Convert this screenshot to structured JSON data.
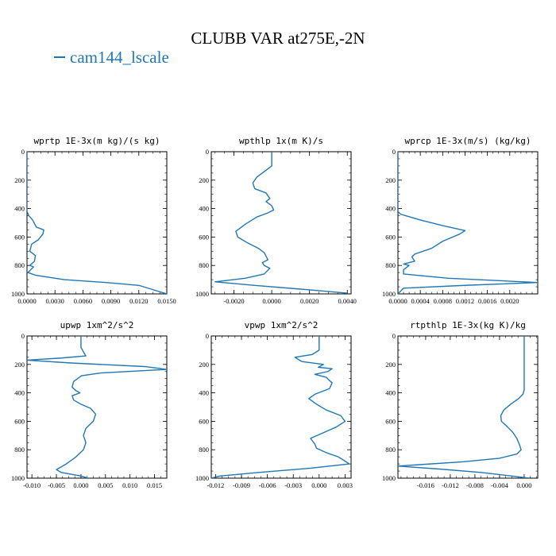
{
  "title": "CLUBB VAR at275E,-2N",
  "legend": {
    "label": "cam144_lscale",
    "color": "#1f77b4"
  },
  "chart_data": [
    {
      "type": "line",
      "title": "wprtp  1E-3x(m kg)/(s kg)",
      "xlim": [
        0,
        0.015
      ],
      "ylim": [
        1000,
        0
      ],
      "xticks": [
        0,
        0.003,
        0.006,
        0.009,
        0.012,
        0.015
      ],
      "xtick_labels": [
        "0.0000",
        "0.0030",
        "0.0060",
        "0.0090",
        "0.0120",
        "0.0150"
      ],
      "yticks": [
        0,
        200,
        400,
        600,
        800,
        1000
      ],
      "ytick_labels": [
        "0",
        "200",
        "400",
        "600",
        "800",
        "1000"
      ],
      "series": [
        {
          "points": [
            [
              0,
              0
            ],
            [
              0,
              300
            ],
            [
              0,
              420
            ],
            [
              0.0002,
              450
            ],
            [
              0.0006,
              480
            ],
            [
              0.001,
              530
            ],
            [
              0.0018,
              550
            ],
            [
              0.0017,
              580
            ],
            [
              0.0012,
              620
            ],
            [
              0.0005,
              650
            ],
            [
              0.0003,
              700
            ],
            [
              0.0009,
              730
            ],
            [
              0.0008,
              770
            ],
            [
              0.0003,
              800
            ],
            [
              0.0007,
              810
            ],
            [
              0.0004,
              830
            ],
            [
              0.0001,
              850
            ],
            [
              0.001,
              870
            ],
            [
              0.004,
              900
            ],
            [
              0.0085,
              920
            ],
            [
              0.012,
              940
            ],
            [
              0.0135,
              970
            ],
            [
              0.015,
              1000
            ]
          ]
        }
      ]
    },
    {
      "type": "line",
      "title": "wpthlp  1x(m K)/s",
      "xlim": [
        -0.0032,
        0.0042
      ],
      "ylim": [
        1000,
        0
      ],
      "xticks": [
        -0.002,
        0,
        0.002,
        0.004
      ],
      "xtick_labels": [
        "-0.0020",
        "0.0000",
        "0.0020",
        "0.0040"
      ],
      "yticks": [
        0,
        200,
        400,
        600,
        800,
        1000
      ],
      "ytick_labels": [
        "0",
        "200",
        "400",
        "600",
        "800",
        "1000"
      ],
      "series": [
        {
          "points": [
            [
              0,
              0
            ],
            [
              0,
              100
            ],
            [
              -0.0003,
              130
            ],
            [
              -0.0008,
              180
            ],
            [
              -0.001,
              220
            ],
            [
              -0.0009,
              260
            ],
            [
              -0.0003,
              290
            ],
            [
              -0.0001,
              330
            ],
            [
              -0.0003,
              350
            ],
            [
              0,
              380
            ],
            [
              0.0001,
              410
            ],
            [
              -0.0002,
              430
            ],
            [
              -0.0008,
              460
            ],
            [
              -0.0014,
              510
            ],
            [
              -0.0019,
              560
            ],
            [
              -0.0018,
              600
            ],
            [
              -0.0013,
              640
            ],
            [
              -0.0007,
              680
            ],
            [
              -0.0004,
              710
            ],
            [
              -0.0002,
              760
            ],
            [
              -0.0005,
              780
            ],
            [
              -0.0004,
              800
            ],
            [
              -0.0001,
              820
            ],
            [
              -0.0004,
              860
            ],
            [
              -0.0014,
              890
            ],
            [
              -0.003,
              915
            ],
            [
              -0.0009,
              940
            ],
            [
              0.0014,
              965
            ],
            [
              0.004,
              995
            ]
          ]
        }
      ]
    },
    {
      "type": "line",
      "title": "wprcp  1E-3x(m/s) (kg/kg)",
      "xlim": [
        0,
        0.0025
      ],
      "ylim": [
        1000,
        0
      ],
      "xticks": [
        0,
        0.0004,
        0.0008,
        0.0012,
        0.0016,
        0.002
      ],
      "xtick_labels": [
        "0.0000",
        "0.0004",
        "0.0008",
        "0.0012",
        "0.0016",
        "0.0020"
      ],
      "yticks": [
        0,
        200,
        400,
        600,
        800,
        1000
      ],
      "ytick_labels": [
        "0",
        "200",
        "400",
        "600",
        "800",
        "1000"
      ],
      "series": [
        {
          "points": [
            [
              0,
              0
            ],
            [
              0,
              420
            ],
            [
              5e-05,
              440
            ],
            [
              0.0004,
              480
            ],
            [
              0.0008,
              520
            ],
            [
              0.0012,
              555
            ],
            [
              0.0011,
              580
            ],
            [
              0.0008,
              630
            ],
            [
              0.0006,
              680
            ],
            [
              0.0003,
              720
            ],
            [
              0.00025,
              740
            ],
            [
              0.0003,
              770
            ],
            [
              0.0001,
              790
            ],
            [
              0.0002,
              800
            ],
            [
              0.0001,
              830
            ],
            [
              0.0001,
              860
            ],
            [
              0.0009,
              890
            ],
            [
              0.0025,
              920
            ],
            [
              0.0012,
              940
            ],
            [
              0.0001,
              960
            ],
            [
              0,
              1000
            ]
          ]
        }
      ]
    },
    {
      "type": "line",
      "title": "upwp  1xm^2/s^2",
      "xlim": [
        -0.011,
        0.0175
      ],
      "ylim": [
        1000,
        0
      ],
      "xticks": [
        -0.01,
        -0.005,
        0,
        0.005,
        0.01,
        0.015
      ],
      "xtick_labels": [
        "-0.010",
        "-0.005",
        "0.000",
        "0.005",
        "0.010",
        "0.015"
      ],
      "yticks": [
        0,
        200,
        400,
        600,
        800,
        1000
      ],
      "ytick_labels": [
        "0",
        "200",
        "400",
        "600",
        "800",
        "1000"
      ],
      "series": [
        {
          "points": [
            [
              0,
              0
            ],
            [
              0,
              80
            ],
            [
              0.0008,
              130
            ],
            [
              0.001,
              140
            ],
            [
              -0.004,
              155
            ],
            [
              -0.011,
              170
            ],
            [
              -0.002,
              190
            ],
            [
              0.013,
              215
            ],
            [
              0.0175,
              235
            ],
            [
              0.004,
              260
            ],
            [
              0.0001,
              280
            ],
            [
              -0.0015,
              320
            ],
            [
              -0.0018,
              360
            ],
            [
              -0.001,
              385
            ],
            [
              -0.0002,
              400
            ],
            [
              -0.0018,
              420
            ],
            [
              -0.0015,
              450
            ],
            [
              0,
              480
            ],
            [
              0.002,
              510
            ],
            [
              0.003,
              550
            ],
            [
              0.0025,
              600
            ],
            [
              0.001,
              650
            ],
            [
              0.0005,
              700
            ],
            [
              0.001,
              750
            ],
            [
              0.0005,
              800
            ],
            [
              -0.001,
              850
            ],
            [
              -0.003,
              900
            ],
            [
              -0.005,
              940
            ],
            [
              -0.004,
              960
            ],
            [
              0,
              985
            ],
            [
              0.0015,
              1000
            ]
          ]
        }
      ]
    },
    {
      "type": "line",
      "title": "vpwp  1xm^2/s^2",
      "xlim": [
        -0.0125,
        0.0037
      ],
      "ylim": [
        1000,
        0
      ],
      "xticks": [
        -0.012,
        -0.009,
        -0.006,
        -0.003,
        0,
        0.003
      ],
      "xtick_labels": [
        "-0.012",
        "-0.009",
        "-0.006",
        "-0.003",
        "0.000",
        "0.003"
      ],
      "yticks": [
        0,
        200,
        400,
        600,
        800,
        1000
      ],
      "ytick_labels": [
        "0",
        "200",
        "400",
        "600",
        "800",
        "1000"
      ],
      "series": [
        {
          "points": [
            [
              0,
              0
            ],
            [
              0,
              100
            ],
            [
              -0.0008,
              130
            ],
            [
              -0.0028,
              150
            ],
            [
              -0.002,
              180
            ],
            [
              0.0005,
              200
            ],
            [
              -0.0001,
              220
            ],
            [
              0.0015,
              230
            ],
            [
              0.001,
              250
            ],
            [
              -0.0005,
              270
            ],
            [
              0.0008,
              290
            ],
            [
              0.0015,
              330
            ],
            [
              0.0012,
              370
            ],
            [
              -0.0005,
              410
            ],
            [
              -0.0012,
              440
            ],
            [
              -0.0003,
              480
            ],
            [
              0.0008,
              520
            ],
            [
              0.0025,
              560
            ],
            [
              0.003,
              600
            ],
            [
              0.002,
              640
            ],
            [
              0.0005,
              680
            ],
            [
              -0.001,
              720
            ],
            [
              -0.0005,
              760
            ],
            [
              -0.0003,
              790
            ],
            [
              0.0008,
              820
            ],
            [
              0.0022,
              850
            ],
            [
              0.003,
              880
            ],
            [
              0.0035,
              900
            ],
            [
              -0.001,
              930
            ],
            [
              -0.007,
              960
            ],
            [
              -0.0115,
              985
            ],
            [
              -0.0125,
              1000
            ]
          ]
        }
      ]
    },
    {
      "type": "line",
      "title": "rtpthlp  1E-3x(kg K)/kg",
      "xlim": [
        -0.0205,
        0.0022
      ],
      "ylim": [
        1000,
        0
      ],
      "xticks": [
        -0.016,
        -0.012,
        -0.008,
        -0.004,
        0
      ],
      "xtick_labels": [
        "-0.016",
        "-0.012",
        "-0.008",
        "-0.004",
        "0.000"
      ],
      "yticks": [
        0,
        200,
        400,
        600,
        800,
        1000
      ],
      "ytick_labels": [
        "0",
        "200",
        "400",
        "600",
        "800",
        "1000"
      ],
      "series": [
        {
          "points": [
            [
              0,
              0
            ],
            [
              0,
              380
            ],
            [
              -0.0002,
              410
            ],
            [
              -0.0009,
              440
            ],
            [
              -0.0022,
              480
            ],
            [
              -0.0033,
              520
            ],
            [
              -0.0038,
              560
            ],
            [
              -0.0037,
              600
            ],
            [
              -0.0027,
              640
            ],
            [
              -0.0018,
              680
            ],
            [
              -0.0012,
              720
            ],
            [
              -0.0008,
              760
            ],
            [
              -0.0005,
              800
            ],
            [
              -0.0012,
              830
            ],
            [
              -0.004,
              860
            ],
            [
              -0.01,
              885
            ],
            [
              -0.017,
              905
            ],
            [
              -0.0205,
              915
            ],
            [
              -0.014,
              935
            ],
            [
              -0.007,
              960
            ],
            [
              -0.002,
              985
            ],
            [
              0.0008,
              1000
            ]
          ]
        }
      ]
    }
  ]
}
